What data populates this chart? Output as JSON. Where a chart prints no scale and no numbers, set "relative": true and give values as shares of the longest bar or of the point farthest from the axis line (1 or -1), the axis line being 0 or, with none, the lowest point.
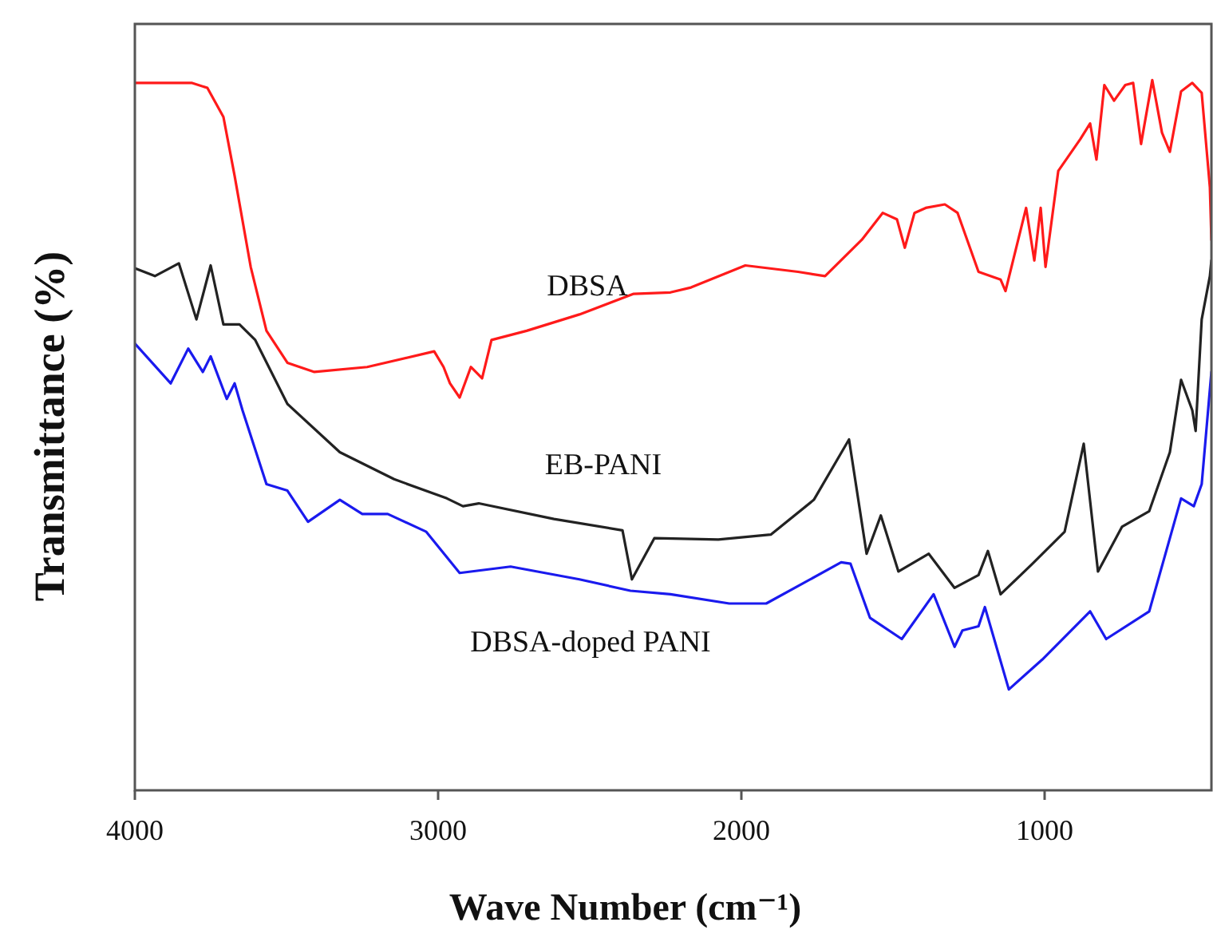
{
  "chart_data": {
    "type": "line",
    "xlabel": "Wave Number (cm⁻¹)",
    "ylabel": "Transmittance (%)",
    "relative": true,
    "tick_labels": "x",
    "xlim": [
      4000,
      450
    ],
    "xticks": [
      4000,
      3000,
      2000,
      1000
    ],
    "series": [
      {
        "name": "DBSA",
        "color": "#ff1a1a",
        "x": [
          4000,
          3813,
          3761,
          3708,
          3671,
          3618,
          3566,
          3497,
          3408,
          3234,
          3013,
          2982,
          2961,
          2929,
          2892,
          2855,
          2824,
          2708,
          2534,
          2355,
          2234,
          2166,
          1987,
          1813,
          1724,
          1603,
          1534,
          1487,
          1461,
          1429,
          1392,
          1329,
          1287,
          1218,
          1145,
          1129,
          1061,
          1034,
          1013,
          997,
          955,
          882,
          850,
          829,
          803,
          771,
          734,
          708,
          682,
          645,
          613,
          587,
          550,
          513,
          482,
          455,
          450
        ],
        "values": [
          0.996,
          0.996,
          0.989,
          0.948,
          0.865,
          0.737,
          0.647,
          0.602,
          0.589,
          0.596,
          0.618,
          0.596,
          0.573,
          0.553,
          0.596,
          0.58,
          0.634,
          0.647,
          0.67,
          0.699,
          0.701,
          0.708,
          0.739,
          0.73,
          0.724,
          0.775,
          0.813,
          0.804,
          0.764,
          0.813,
          0.82,
          0.825,
          0.813,
          0.73,
          0.719,
          0.703,
          0.82,
          0.746,
          0.82,
          0.737,
          0.872,
          0.917,
          0.939,
          0.888,
          0.993,
          0.971,
          0.993,
          0.996,
          0.91,
          1,
          0.926,
          0.899,
          0.984,
          0.996,
          0.982,
          0.849,
          0.775
        ]
      },
      {
        "name": "EB-PANI",
        "color": "#222222",
        "x": [
          4000,
          3934,
          3855,
          3797,
          3750,
          3708,
          3655,
          3603,
          3497,
          3324,
          3145,
          2971,
          2918,
          2866,
          2618,
          2392,
          2361,
          2287,
          2076,
          1903,
          1761,
          1645,
          1587,
          1540,
          1482,
          1382,
          1297,
          1218,
          1187,
          1145,
          1040,
          934,
          871,
          824,
          745,
          655,
          587,
          550,
          513,
          502,
          482,
          455,
          450
        ],
        "values": [
          0.735,
          0.724,
          0.742,
          0.663,
          0.739,
          0.656,
          0.656,
          0.634,
          0.544,
          0.476,
          0.438,
          0.411,
          0.4,
          0.404,
          0.382,
          0.366,
          0.297,
          0.355,
          0.353,
          0.36,
          0.409,
          0.494,
          0.333,
          0.387,
          0.308,
          0.333,
          0.285,
          0.303,
          0.337,
          0.276,
          0.319,
          0.364,
          0.488,
          0.308,
          0.371,
          0.393,
          0.476,
          0.578,
          0.535,
          0.506,
          0.663,
          0.724,
          0.746
        ]
      },
      {
        "name": "DBSA-doped PANI",
        "color": "#1a1aee",
        "x": [
          4000,
          3882,
          3824,
          3776,
          3750,
          3697,
          3671,
          3645,
          3566,
          3497,
          3429,
          3324,
          3250,
          3166,
          3039,
          2929,
          2761,
          2534,
          2366,
          2234,
          2040,
          1918,
          1671,
          1640,
          1576,
          1471,
          1366,
          1297,
          1271,
          1218,
          1197,
          1118,
          1008,
          850,
          797,
          655,
          550,
          508,
          482,
          450
        ],
        "values": [
          0.629,
          0.573,
          0.622,
          0.589,
          0.611,
          0.551,
          0.573,
          0.535,
          0.431,
          0.422,
          0.378,
          0.409,
          0.389,
          0.389,
          0.364,
          0.306,
          0.315,
          0.297,
          0.281,
          0.276,
          0.263,
          0.263,
          0.321,
          0.319,
          0.243,
          0.213,
          0.276,
          0.202,
          0.225,
          0.231,
          0.258,
          0.142,
          0.184,
          0.252,
          0.213,
          0.252,
          0.411,
          0.4,
          0.431,
          0.589
        ]
      }
    ]
  }
}
